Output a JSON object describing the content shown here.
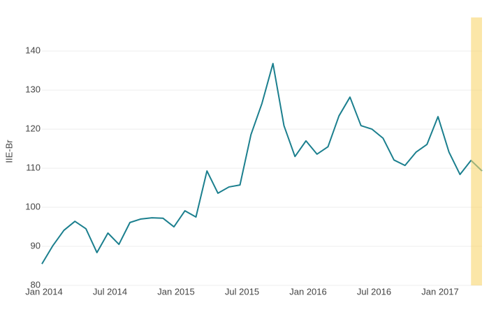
{
  "chart_data": {
    "type": "line",
    "y_label": "IIE-Br",
    "x": [
      "2014-01",
      "2014-02",
      "2014-03",
      "2014-04",
      "2014-05",
      "2014-06",
      "2014-07",
      "2014-08",
      "2014-09",
      "2014-10",
      "2014-11",
      "2014-12",
      "2015-01",
      "2015-02",
      "2015-03",
      "2015-04",
      "2015-05",
      "2015-06",
      "2015-07",
      "2015-08",
      "2015-09",
      "2015-10",
      "2015-11",
      "2015-12",
      "2016-01",
      "2016-02",
      "2016-03",
      "2016-04",
      "2016-05",
      "2016-06",
      "2016-07",
      "2016-08",
      "2016-09",
      "2016-10",
      "2016-11",
      "2016-12",
      "2017-01",
      "2017-02",
      "2017-03",
      "2017-04",
      "2017-05"
    ],
    "series": [
      {
        "color": "#1b7f8e",
        "values": [
          85.5,
          90.2,
          94.1,
          96.4,
          94.5,
          88.4,
          93.4,
          90.5,
          96.1,
          97.0,
          97.3,
          97.2,
          95.0,
          99.1,
          97.5,
          109.3,
          103.6,
          105.2,
          105.7,
          118.6,
          126.6,
          136.8,
          120.9,
          113.0,
          117.0,
          113.6,
          115.5,
          123.4,
          128.2,
          120.9,
          120.0,
          117.7,
          112.1,
          110.7,
          114.1,
          116.1,
          123.2,
          114.1,
          108.4,
          112.0,
          109.3
        ]
      }
    ],
    "xlim": [
      "2014-01",
      "2017-05"
    ],
    "xticks": [
      {
        "value": "2014-01",
        "label": "Jan 2014"
      },
      {
        "value": "2014-07",
        "label": "Jul 2014"
      },
      {
        "value": "2015-01",
        "label": "Jan 2015"
      },
      {
        "value": "2015-07",
        "label": "Jul 2015"
      },
      {
        "value": "2016-01",
        "label": "Jan 2016"
      },
      {
        "value": "2016-07",
        "label": "Jul 2016"
      },
      {
        "value": "2017-01",
        "label": "Jan 2017"
      }
    ],
    "ylim": [
      80,
      148.6
    ],
    "yticks": [
      80,
      90,
      100,
      110,
      120,
      130,
      140
    ],
    "grid": true,
    "shaded_region": {
      "x": [
        "2017-04",
        "2017-05"
      ],
      "color": "#f9d56e"
    }
  }
}
